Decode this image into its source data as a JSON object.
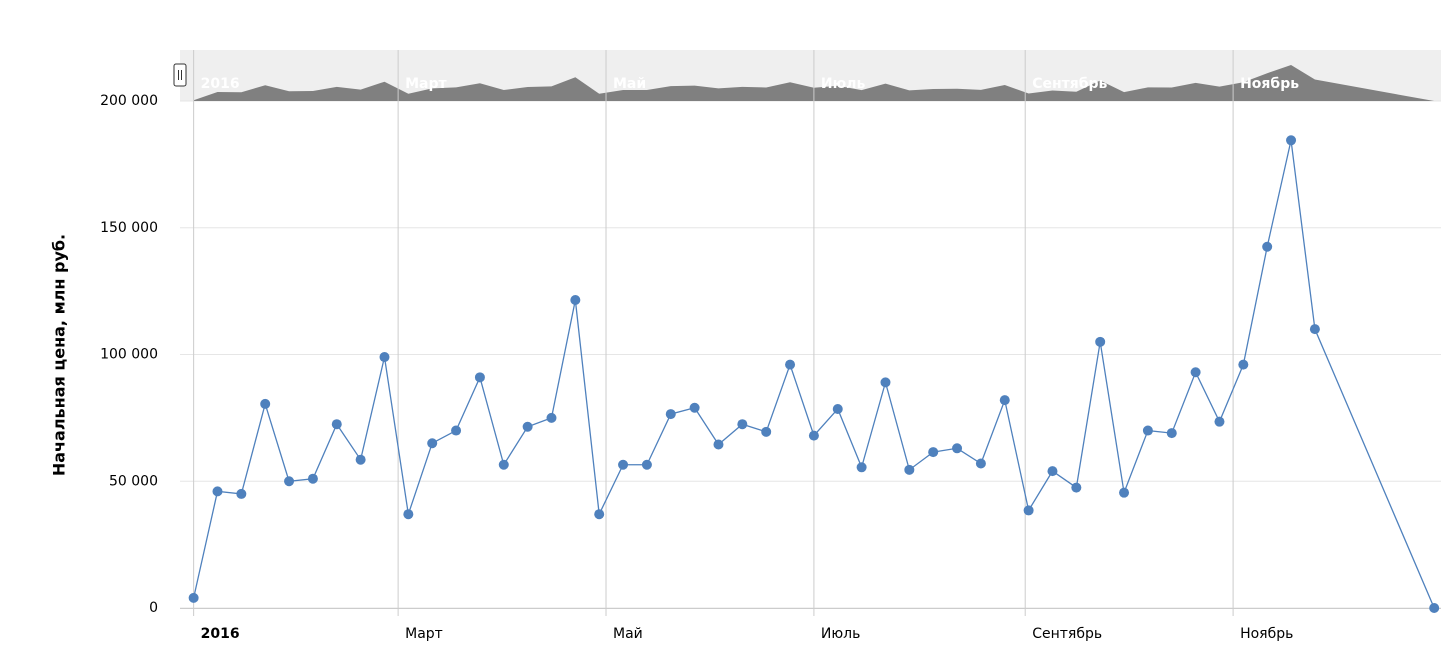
{
  "chart_data": {
    "type": "line",
    "y_label": "Начальная цена, млн руб.",
    "color": "#4f81bd",
    "grid": true,
    "x": [
      "2016-01-01",
      "2016-01-08",
      "2016-01-15",
      "2016-01-22",
      "2016-01-29",
      "2016-02-05",
      "2016-02-12",
      "2016-02-19",
      "2016-02-26",
      "2016-03-04",
      "2016-03-11",
      "2016-03-18",
      "2016-03-25",
      "2016-04-01",
      "2016-04-08",
      "2016-04-15",
      "2016-04-22",
      "2016-04-29",
      "2016-05-06",
      "2016-05-13",
      "2016-05-20",
      "2016-05-27",
      "2016-06-03",
      "2016-06-10",
      "2016-06-17",
      "2016-06-24",
      "2016-07-01",
      "2016-07-08",
      "2016-07-15",
      "2016-07-22",
      "2016-07-29",
      "2016-08-05",
      "2016-08-12",
      "2016-08-19",
      "2016-08-26",
      "2016-09-02",
      "2016-09-09",
      "2016-09-16",
      "2016-09-23",
      "2016-09-30",
      "2016-10-07",
      "2016-10-14",
      "2016-10-21",
      "2016-10-28",
      "2016-11-04",
      "2016-11-11",
      "2016-11-18",
      "2016-11-25",
      "2016-12-30"
    ],
    "values": [
      4000,
      46000,
      45000,
      80500,
      50000,
      51000,
      72500,
      58500,
      99000,
      37000,
      65000,
      70000,
      91000,
      56500,
      71500,
      75000,
      121500,
      37000,
      56500,
      56500,
      76500,
      79000,
      64500,
      72500,
      69500,
      96000,
      68000,
      78500,
      55500,
      89000,
      54500,
      61500,
      63000,
      57000,
      82000,
      38500,
      54000,
      47500,
      105000,
      45500,
      70000,
      69000,
      93000,
      73500,
      96000,
      142500,
      184500,
      110000,
      0
    ],
    "xlim": [
      "2015-12-28",
      "2017-01-01"
    ],
    "xticks": [
      {
        "value": "2016-01-01",
        "label": "2016"
      },
      {
        "value": "2016-03-01",
        "label": "Март"
      },
      {
        "value": "2016-05-01",
        "label": "Май"
      },
      {
        "value": "2016-07-01",
        "label": "Июль"
      },
      {
        "value": "2016-09-01",
        "label": "Сентябрь"
      },
      {
        "value": "2016-11-01",
        "label": "Ноябрь"
      }
    ],
    "ylim": [
      0,
      200000
    ],
    "yticks": [
      0,
      {
        "value": 50000,
        "label": "50 000"
      },
      {
        "value": 100000,
        "label": "100 000"
      },
      {
        "value": 150000,
        "label": "150 000"
      },
      {
        "value": 200000,
        "label": "200 000"
      }
    ]
  }
}
